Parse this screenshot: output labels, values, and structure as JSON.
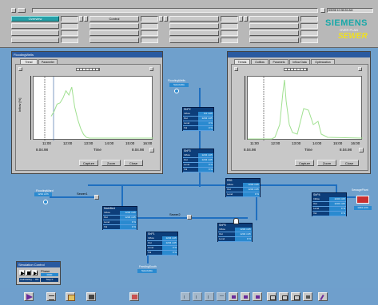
{
  "header": {
    "overview_label": "Overview",
    "control_label": "Control",
    "datetime": "8/5/98 10:35:26 AM",
    "brand": "SIEMENS",
    "brand_sub1": "OVER PLAN",
    "brand_sub2": "SEWER",
    "brand_color": "#18a8a8",
    "sewer_color": "#f0e020"
  },
  "left_trend": {
    "title": "FloodingWells",
    "tabs": [
      "Trend",
      "Parameter"
    ],
    "x_ticks": [
      "11:00",
      "12:00",
      "13:00",
      "14:00",
      "15:00",
      "16:00"
    ],
    "date_left": "8.04.98",
    "date_right": "8.04.98",
    "x_label": "Time",
    "y_label": "Inflow [%]",
    "buttons": [
      "Capture",
      "Zoom",
      "Close"
    ],
    "series": [
      {
        "name": "inflow",
        "values": [
          40,
          48,
          60,
          62,
          70,
          82,
          75,
          88,
          55,
          35,
          20,
          10,
          5,
          4
        ]
      }
    ]
  },
  "right_trend": {
    "tabs": [
      "Trends",
      "Outflow",
      "Paramets",
      "Inflow Data",
      "Optimization"
    ],
    "x_ticks": [
      "11:00",
      "12:00",
      "13:00",
      "14:00",
      "15:00",
      "16:00"
    ],
    "date_left": "8.04.98",
    "date_right": "8.04.98",
    "x_label": "Time",
    "buttons": [
      "Capture",
      "Zoom",
      "Close"
    ]
  },
  "nodes": {
    "flooding_wells": "FloodingWells",
    "flooding_wells_sub": "Selectable",
    "flooding_ward": "FloodingWard",
    "flooding_ward_value": "1234 m³/h",
    "flooding_south": "FeedingSouth",
    "flooding_south_sub": "Selectable",
    "sewage_plant": "SewagePlant",
    "sewage_plant_value": "1234 m³/h",
    "sewer1": "Sewer1",
    "sewer2": "Sewer2"
  },
  "cards": {
    "shp2": {
      "title": "ShP2",
      "rows": [
        [
          "Inflow",
          "0.0 m³/h"
        ],
        [
          "Out",
          "1234 m³/h"
        ],
        [
          "Level",
          "0 %"
        ],
        [
          "Vol",
          "0 %"
        ]
      ]
    },
    "shp3": {
      "title": "ShP3",
      "rows": [
        [
          "Inflow",
          "1234 m³/h"
        ],
        [
          "Out",
          "1234 m³/h"
        ],
        [
          "Level",
          "0 %"
        ],
        [
          "Vol",
          "0 %"
        ]
      ]
    },
    "rb1": {
      "title": "RB1",
      "rows": [
        [
          "Inflow",
          "1234 m³/h"
        ],
        [
          "Out",
          "1234 m³/h"
        ],
        [
          "Level",
          "0 %"
        ]
      ]
    },
    "shp4": {
      "title": "ShP4",
      "rows": [
        [
          "Inflow",
          "1234 m³/h"
        ],
        [
          "Out",
          "1234 m³/h"
        ],
        [
          "Level",
          "0 %"
        ],
        [
          "Vol",
          "0 %"
        ]
      ]
    },
    "mainpump": {
      "title": "MainBed",
      "rows": [
        [
          "Inflow",
          "1234 m³/h"
        ],
        [
          "Out",
          "1234 m³/h"
        ],
        [
          "Level",
          "0 %"
        ],
        [
          "Vol",
          "0 %"
        ]
      ]
    },
    "shp5": {
      "title": "ShP5",
      "rows": [
        [
          "Inflow",
          "1234 m³/h"
        ],
        [
          "Out",
          "1234 m³/h"
        ],
        [
          "Level",
          "0 %"
        ]
      ]
    },
    "shp1": {
      "title": "ShP1",
      "rows": [
        [
          "Inflow",
          "1234 m³/h"
        ],
        [
          "Out",
          "1234 m³/h"
        ],
        [
          "Level",
          "0 %"
        ],
        [
          "Vol",
          "0 %"
        ]
      ]
    }
  },
  "sim_control": {
    "title": "Simulation Control",
    "phase_label": "Phase",
    "phase_value": "0000",
    "calc_label": "Calculating ... 0%",
    "step_label": "Step 0"
  },
  "colors": {
    "background": "#6fa0cc",
    "pipe": "#1f6fc0",
    "trend_line": "#a0e090",
    "card": "#0d3e7a"
  }
}
